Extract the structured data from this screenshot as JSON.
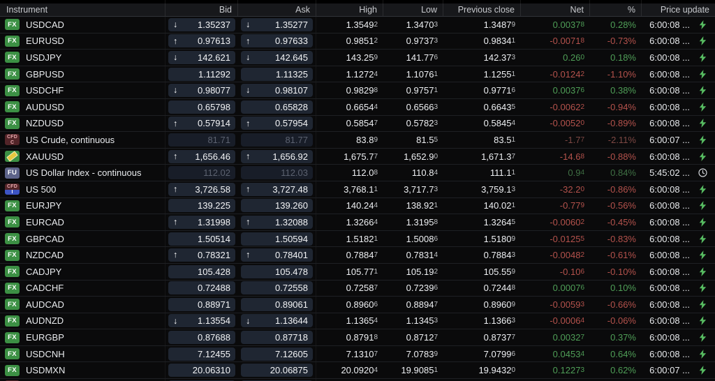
{
  "header": {
    "columns": [
      "Instrument",
      "Bid",
      "Ask",
      "High",
      "Low",
      "Previous close",
      "Net",
      "%",
      "Price update"
    ]
  },
  "colors": {
    "net_up": "#4f9e57",
    "net_down": "#b4524c",
    "badge_fx": "#3c9044",
    "badge_fu": "#5d6389",
    "badge_cfd_maroon": "#522428",
    "badge_cfd_blue": "#3d54c4",
    "lightning": "#57bb61",
    "pill_bg": "#1f2632"
  },
  "badges": {
    "fx_label": "FX",
    "fu_label": "FU",
    "cfd_label": "CFD",
    "cfd_commodity_sub": "C",
    "cfd_index_sub": "I",
    "gold_icon": "gold-bar-icon"
  },
  "rows": [
    {
      "badge": "fx",
      "name": "USDCAD",
      "arrow": "down",
      "bid": "1.35237",
      "ask": "1.35277",
      "high": "1.35492",
      "low": "1.34703",
      "prev": "1.34879",
      "net": "0.00378",
      "pct": "0.28%",
      "time": "6:00:08 ...",
      "icon": "lightning",
      "dim": false
    },
    {
      "badge": "fx",
      "name": "EURUSD",
      "arrow": "up",
      "bid": "0.97613",
      "ask": "0.97633",
      "high": "0.98512",
      "low": "0.97373",
      "prev": "0.98341",
      "net": "-0.00718",
      "pct": "-0.73%",
      "time": "6:00:08 ...",
      "icon": "lightning",
      "dim": false
    },
    {
      "badge": "fx",
      "name": "USDJPY",
      "arrow": "down",
      "bid": "142.621",
      "ask": "142.645",
      "high": "143.259",
      "low": "141.776",
      "prev": "142.373",
      "net": "0.260",
      "pct": "0.18%",
      "time": "6:00:08 ...",
      "icon": "lightning",
      "dim": false
    },
    {
      "badge": "fx",
      "name": "GBPUSD",
      "arrow": null,
      "bid": "1.11292",
      "ask": "1.11325",
      "high": "1.12724",
      "low": "1.10761",
      "prev": "1.12551",
      "net": "-0.01242",
      "pct": "-1.10%",
      "time": "6:00:08 ...",
      "icon": "lightning",
      "dim": false
    },
    {
      "badge": "fx",
      "name": "USDCHF",
      "arrow": "down",
      "bid": "0.98077",
      "ask": "0.98107",
      "high": "0.98298",
      "low": "0.97571",
      "prev": "0.97716",
      "net": "0.00376",
      "pct": "0.38%",
      "time": "6:00:08 ...",
      "icon": "lightning",
      "dim": false
    },
    {
      "badge": "fx",
      "name": "AUDUSD",
      "arrow": null,
      "bid": "0.65798",
      "ask": "0.65828",
      "high": "0.66544",
      "low": "0.65663",
      "prev": "0.66435",
      "net": "-0.00622",
      "pct": "-0.94%",
      "time": "6:00:08 ...",
      "icon": "lightning",
      "dim": false
    },
    {
      "badge": "fx",
      "name": "NZDUSD",
      "arrow": "up",
      "bid": "0.57914",
      "ask": "0.57954",
      "high": "0.58547",
      "low": "0.57823",
      "prev": "0.58454",
      "net": "-0.00520",
      "pct": "-0.89%",
      "time": "6:00:08 ...",
      "icon": "lightning",
      "dim": false
    },
    {
      "badge": "cfd-c",
      "name": "US Crude, continuous",
      "arrow": null,
      "bid": "81.71",
      "ask": "81.77",
      "high": "83.89",
      "low": "81.55",
      "prev": "83.51",
      "net": "-1.77",
      "pct": "-2.11%",
      "time": "6:00:07 ...",
      "icon": "lightning",
      "dim": true
    },
    {
      "badge": "gold",
      "name": "XAUUSD",
      "arrow": "up",
      "bid": "1,656.46",
      "ask": "1,656.92",
      "high": "1,675.77",
      "low": "1,652.90",
      "prev": "1,671.37",
      "net": "-14.68",
      "pct": "-0.88%",
      "time": "6:00:08 ...",
      "icon": "lightning",
      "dim": false
    },
    {
      "badge": "fu",
      "name": "US Dollar Index - continuous",
      "arrow": null,
      "bid": "112.02",
      "ask": "112.03",
      "high": "112.08",
      "low": "110.84",
      "prev": "111.11",
      "net": "0.94",
      "pct": "0.84%",
      "time": "5:45:02 ...",
      "icon": "clock",
      "dim": true
    },
    {
      "badge": "cfd-i",
      "name": "US 500",
      "arrow": "up",
      "bid": "3,726.58",
      "ask": "3,727.48",
      "high": "3,768.11",
      "low": "3,717.73",
      "prev": "3,759.13",
      "net": "-32.20",
      "pct": "-0.86%",
      "time": "6:00:08 ...",
      "icon": "lightning",
      "dim": false
    },
    {
      "badge": "fx",
      "name": "EURJPY",
      "arrow": null,
      "bid": "139.225",
      "ask": "139.260",
      "high": "140.244",
      "low": "138.921",
      "prev": "140.021",
      "net": "-0.779",
      "pct": "-0.56%",
      "time": "6:00:08 ...",
      "icon": "lightning",
      "dim": false
    },
    {
      "badge": "fx",
      "name": "EURCAD",
      "arrow": "up",
      "bid": "1.31998",
      "ask": "1.32088",
      "high": "1.32664",
      "low": "1.31958",
      "prev": "1.32645",
      "net": "-0.00602",
      "pct": "-0.45%",
      "time": "6:00:08 ...",
      "icon": "lightning",
      "dim": false
    },
    {
      "badge": "fx",
      "name": "GBPCAD",
      "arrow": null,
      "bid": "1.50514",
      "ask": "1.50594",
      "high": "1.51821",
      "low": "1.50086",
      "prev": "1.51809",
      "net": "-0.01255",
      "pct": "-0.83%",
      "time": "6:00:08 ...",
      "icon": "lightning",
      "dim": false
    },
    {
      "badge": "fx",
      "name": "NZDCAD",
      "arrow": "up",
      "bid": "0.78321",
      "ask": "0.78401",
      "high": "0.78847",
      "low": "0.78314",
      "prev": "0.78843",
      "net": "-0.00482",
      "pct": "-0.61%",
      "time": "6:00:08 ...",
      "icon": "lightning",
      "dim": false
    },
    {
      "badge": "fx",
      "name": "CADJPY",
      "arrow": null,
      "bid": "105.428",
      "ask": "105.478",
      "high": "105.771",
      "low": "105.192",
      "prev": "105.559",
      "net": "-0.106",
      "pct": "-0.10%",
      "time": "6:00:08 ...",
      "icon": "lightning",
      "dim": false
    },
    {
      "badge": "fx",
      "name": "CADCHF",
      "arrow": null,
      "bid": "0.72488",
      "ask": "0.72558",
      "high": "0.72587",
      "low": "0.72396",
      "prev": "0.72448",
      "net": "0.00076",
      "pct": "0.10%",
      "time": "6:00:08 ...",
      "icon": "lightning",
      "dim": false
    },
    {
      "badge": "fx",
      "name": "AUDCAD",
      "arrow": null,
      "bid": "0.88971",
      "ask": "0.89061",
      "high": "0.89606",
      "low": "0.88947",
      "prev": "0.89609",
      "net": "-0.00593",
      "pct": "-0.66%",
      "time": "6:00:08 ...",
      "icon": "lightning",
      "dim": false
    },
    {
      "badge": "fx",
      "name": "AUDNZD",
      "arrow": "down",
      "bid": "1.13554",
      "ask": "1.13644",
      "high": "1.13654",
      "low": "1.13453",
      "prev": "1.13663",
      "net": "-0.00064",
      "pct": "-0.06%",
      "time": "6:00:08 ...",
      "icon": "lightning",
      "dim": false
    },
    {
      "badge": "fx",
      "name": "EURGBP",
      "arrow": null,
      "bid": "0.87688",
      "ask": "0.87718",
      "high": "0.87918",
      "low": "0.87127",
      "prev": "0.87377",
      "net": "0.00327",
      "pct": "0.37%",
      "time": "6:00:08 ...",
      "icon": "lightning",
      "dim": false
    },
    {
      "badge": "fx",
      "name": "USDCNH",
      "arrow": null,
      "bid": "7.12455",
      "ask": "7.12605",
      "high": "7.13107",
      "low": "7.07839",
      "prev": "7.07996",
      "net": "0.04534",
      "pct": "0.64%",
      "time": "6:00:08 ...",
      "icon": "lightning",
      "dim": false
    },
    {
      "badge": "fx",
      "name": "USDMXN",
      "arrow": null,
      "bid": "20.06310",
      "ask": "20.06875",
      "high": "20.09204",
      "low": "19.90851",
      "prev": "19.94320",
      "net": "0.12273",
      "pct": "0.62%",
      "time": "6:00:07 ...",
      "icon": "lightning",
      "dim": false
    }
  ],
  "partial_row": {
    "badge": "cfd-c"
  }
}
